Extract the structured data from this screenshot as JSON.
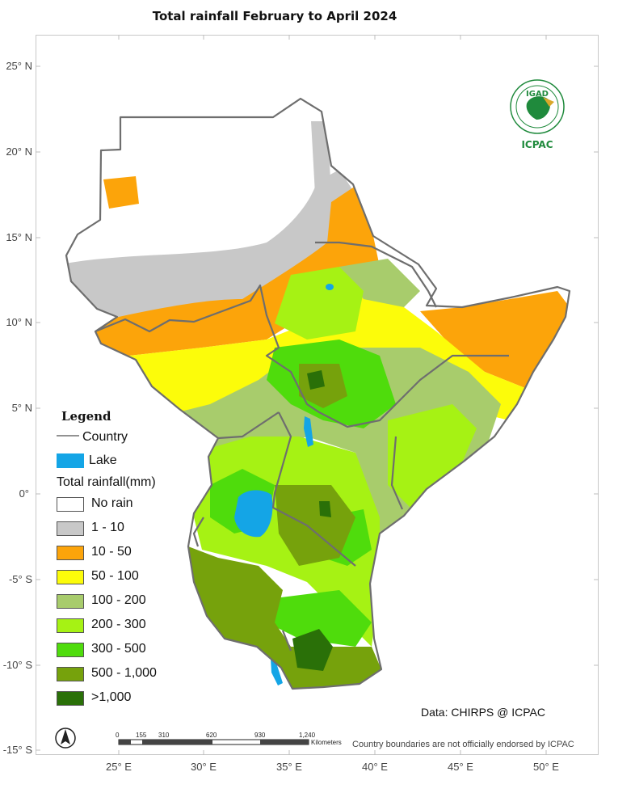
{
  "title": "Total rainfall February to April 2024",
  "axes": {
    "lat_labels": [
      "25° N",
      "20° N",
      "15° N",
      "10° N",
      "5° N",
      "0°",
      "-5° S",
      "-10° S",
      "-15° S"
    ],
    "lon_labels": [
      "25° E",
      "30° E",
      "35° E",
      "40° E",
      "45° E",
      "50° E"
    ]
  },
  "legend": {
    "title": "Legend",
    "country_label": "Country",
    "lake_label": "Lake",
    "rain_title": "Total rainfall(mm)",
    "classes": [
      {
        "label": "No rain",
        "color": "#ffffff"
      },
      {
        "label": "1 - 10",
        "color": "#c8c8c8"
      },
      {
        "label": "10 - 50",
        "color": "#fca40a"
      },
      {
        "label": "50 - 100",
        "color": "#fcfc0a"
      },
      {
        "label": "100 - 200",
        "color": "#a8cc6c"
      },
      {
        "label": "200 - 300",
        "color": "#a6f214"
      },
      {
        "label": "300 - 500",
        "color": "#4fdc0c"
      },
      {
        "label": "500 - 1,000",
        "color": "#76a20c"
      },
      {
        "label": ">1,000",
        "color": "#2a7008"
      }
    ],
    "lake_color": "#14a5e6",
    "border_color": "#6e6e6e"
  },
  "logo": {
    "top_text": "IGAD",
    "bottom_text": "ICPAC",
    "color": "#1f8a3c"
  },
  "credit": "Data: CHIRPS @ ICPAC",
  "disclaimer": "Country boundaries are not officially endorsed by ICPAC",
  "scale_bar": {
    "ticks": [
      "0",
      "155",
      "310",
      "620",
      "930",
      "1,240"
    ],
    "unit": "Kilometers"
  },
  "north_arrow": "N"
}
